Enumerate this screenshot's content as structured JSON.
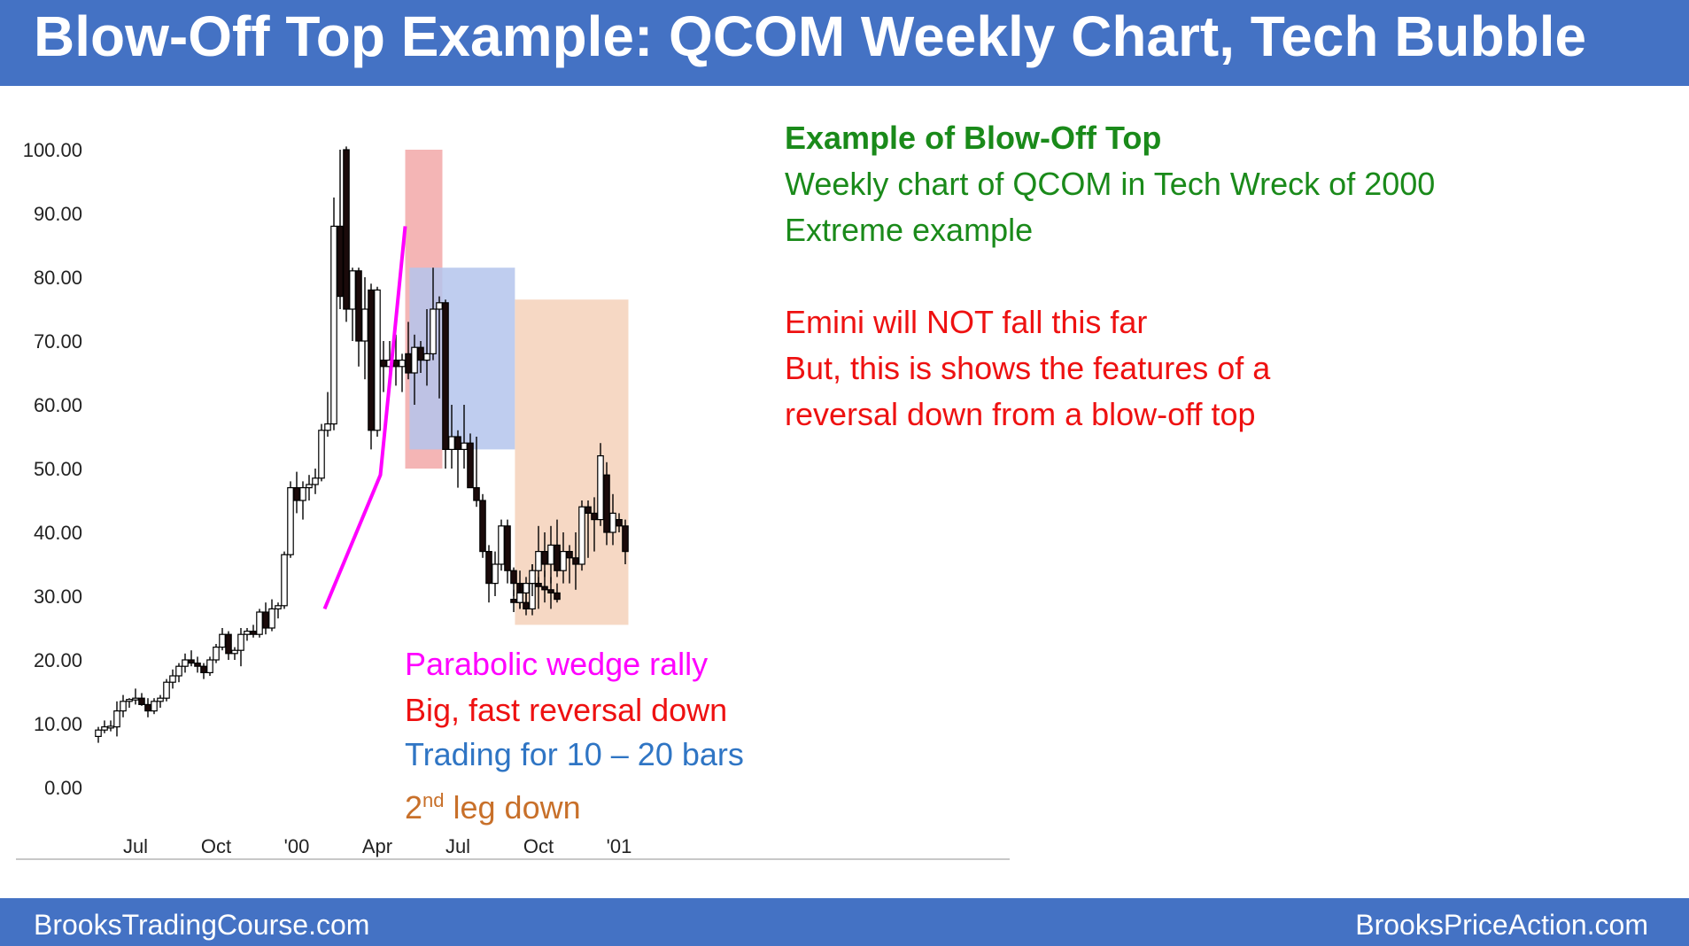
{
  "header": {
    "title": "Blow-Off Top Example: QCOM Weekly Chart, Tech Bubble"
  },
  "footer": {
    "left": "BrooksTradingCourse.com",
    "right": "BrooksPriceAction.com"
  },
  "annotations": {
    "top_heading": "Example of Blow-Off Top",
    "top_line1": "Weekly chart of QCOM in Tech Wreck of 2000",
    "top_line2": "Extreme example",
    "red_line1": "Emini will NOT fall this far",
    "red_line2": "But, this is shows the features of a",
    "red_line3": "reversal down from a blow-off top",
    "bottom_line1": "Parabolic wedge rally",
    "bottom_line2": "Big, fast reversal down",
    "bottom_line3": "Trading for 10 – 20 bars",
    "bottom_line4_pre": "2",
    "bottom_line4_sup": "nd",
    "bottom_line4_post": " leg down"
  },
  "colors": {
    "green": "#1a8a1a",
    "red": "#ee1111",
    "magenta": "#ff00ff",
    "blue": "#2f75c4",
    "orange": "#c8702a",
    "blowoff_box": "#f4b5b5",
    "range_box": "#b4c4ec",
    "leg_box": "#f6d8c4",
    "brand": "#4472c4"
  },
  "chart_data": {
    "type": "candlestick",
    "yticks": [
      "100.00",
      "90.00",
      "80.00",
      "70.00",
      "60.00",
      "50.00",
      "40.00",
      "30.00",
      "20.00",
      "10.00",
      "0.00"
    ],
    "ylim": [
      0,
      100
    ],
    "xticks": [
      {
        "label": "Jul",
        "week": 6
      },
      {
        "label": "Oct",
        "week": 19
      },
      {
        "label": "'00",
        "week": 32
      },
      {
        "label": "Apr",
        "week": 45
      },
      {
        "label": "Jul",
        "week": 58
      },
      {
        "label": "Oct",
        "week": 71
      },
      {
        "label": "'01",
        "week": 84
      }
    ],
    "candles": [
      {
        "o": 8,
        "h": 9.5,
        "l": 7,
        "c": 9
      },
      {
        "o": 9,
        "h": 10.5,
        "l": 8.5,
        "c": 9.5
      },
      {
        "o": 9.5,
        "h": 10.5,
        "l": 8.8,
        "c": 9.6
      },
      {
        "o": 9.5,
        "h": 13.5,
        "l": 8,
        "c": 12
      },
      {
        "o": 12,
        "h": 14.5,
        "l": 11,
        "c": 13.5
      },
      {
        "o": 13.5,
        "h": 14,
        "l": 12.5,
        "c": 13.8
      },
      {
        "o": 13.8,
        "h": 15.5,
        "l": 13,
        "c": 14
      },
      {
        "o": 14,
        "h": 14.8,
        "l": 12.8,
        "c": 13
      },
      {
        "o": 13,
        "h": 14,
        "l": 11,
        "c": 12
      },
      {
        "o": 12,
        "h": 14,
        "l": 11.5,
        "c": 13.5
      },
      {
        "o": 13.5,
        "h": 14.5,
        "l": 12.5,
        "c": 14
      },
      {
        "o": 14,
        "h": 17,
        "l": 13.5,
        "c": 16.5
      },
      {
        "o": 16.5,
        "h": 18.5,
        "l": 15.5,
        "c": 17.5
      },
      {
        "o": 17.5,
        "h": 19.5,
        "l": 16.5,
        "c": 19
      },
      {
        "o": 19,
        "h": 21,
        "l": 18,
        "c": 20
      },
      {
        "o": 20,
        "h": 21.5,
        "l": 19,
        "c": 19.5
      },
      {
        "o": 19.5,
        "h": 20.5,
        "l": 18,
        "c": 19
      },
      {
        "o": 19,
        "h": 19.5,
        "l": 17,
        "c": 18
      },
      {
        "o": 18,
        "h": 20.5,
        "l": 17.5,
        "c": 20
      },
      {
        "o": 20,
        "h": 22.5,
        "l": 19.5,
        "c": 22
      },
      {
        "o": 22,
        "h": 25,
        "l": 21.5,
        "c": 24
      },
      {
        "o": 24,
        "h": 24.5,
        "l": 20,
        "c": 21
      },
      {
        "o": 21,
        "h": 22,
        "l": 20,
        "c": 21.5
      },
      {
        "o": 21.5,
        "h": 25,
        "l": 19,
        "c": 24
      },
      {
        "o": 24,
        "h": 25,
        "l": 23,
        "c": 24.5
      },
      {
        "o": 24.5,
        "h": 25.5,
        "l": 23.5,
        "c": 24
      },
      {
        "o": 24,
        "h": 28,
        "l": 23.5,
        "c": 27.5
      },
      {
        "o": 27.5,
        "h": 29,
        "l": 24,
        "c": 25
      },
      {
        "o": 25,
        "h": 29.5,
        "l": 24.5,
        "c": 28
      },
      {
        "o": 28,
        "h": 29,
        "l": 26.5,
        "c": 28.5
      },
      {
        "o": 28.5,
        "h": 37,
        "l": 28,
        "c": 36.5
      },
      {
        "o": 36.5,
        "h": 48,
        "l": 36,
        "c": 47
      },
      {
        "o": 47,
        "h": 49.5,
        "l": 43,
        "c": 45
      },
      {
        "o": 45,
        "h": 48,
        "l": 42,
        "c": 47
      },
      {
        "o": 47,
        "h": 49,
        "l": 45,
        "c": 47.5
      },
      {
        "o": 47.5,
        "h": 50,
        "l": 46,
        "c": 48.5
      },
      {
        "o": 48.5,
        "h": 57,
        "l": 48,
        "c": 56
      },
      {
        "o": 56,
        "h": 62,
        "l": 55,
        "c": 57
      },
      {
        "o": 57,
        "h": 92.5,
        "l": 56,
        "c": 88
      },
      {
        "o": 88,
        "h": 100,
        "l": 75,
        "c": 77
      },
      {
        "o": 100,
        "h": 100.5,
        "l": 73,
        "c": 75
      },
      {
        "o": 75,
        "h": 81.5,
        "l": 70,
        "c": 81
      },
      {
        "o": 81,
        "h": 81.5,
        "l": 66,
        "c": 70
      },
      {
        "o": 70,
        "h": 80,
        "l": 64,
        "c": 75
      },
      {
        "o": 78,
        "h": 79,
        "l": 53,
        "c": 56
      },
      {
        "o": 56,
        "h": 78.5,
        "l": 55,
        "c": 78
      },
      {
        "o": 67,
        "h": 70,
        "l": 62,
        "c": 66
      },
      {
        "o": 66,
        "h": 70,
        "l": 63,
        "c": 67
      },
      {
        "o": 67,
        "h": 71,
        "l": 63,
        "c": 66
      },
      {
        "o": 66,
        "h": 68,
        "l": 62,
        "c": 67
      },
      {
        "o": 68,
        "h": 73,
        "l": 64,
        "c": 65
      },
      {
        "o": 65,
        "h": 71,
        "l": 60,
        "c": 69
      },
      {
        "o": 69,
        "h": 70,
        "l": 65,
        "c": 67
      },
      {
        "o": 67,
        "h": 75,
        "l": 63,
        "c": 68
      },
      {
        "o": 68,
        "h": 81.5,
        "l": 67,
        "c": 75
      },
      {
        "o": 75,
        "h": 77,
        "l": 61,
        "c": 76
      },
      {
        "o": 76,
        "h": 76.5,
        "l": 50,
        "c": 53
      },
      {
        "o": 53,
        "h": 60,
        "l": 50,
        "c": 55
      },
      {
        "o": 55,
        "h": 56,
        "l": 47,
        "c": 53
      },
      {
        "o": 53,
        "h": 60,
        "l": 50,
        "c": 54
      },
      {
        "o": 54,
        "h": 55.5,
        "l": 47,
        "c": 47
      },
      {
        "o": 47,
        "h": 55,
        "l": 44,
        "c": 45
      },
      {
        "o": 45,
        "h": 46,
        "l": 36,
        "c": 37
      },
      {
        "o": 37,
        "h": 38,
        "l": 29,
        "c": 32
      },
      {
        "o": 32,
        "h": 37,
        "l": 30,
        "c": 35
      },
      {
        "o": 35,
        "h": 42,
        "l": 34,
        "c": 41
      },
      {
        "o": 41,
        "h": 42,
        "l": 32,
        "c": 34
      },
      {
        "o": 34,
        "h": 34.5,
        "l": 30,
        "c": 32
      },
      {
        "o": 32,
        "h": 34,
        "l": 28,
        "c": 29
      },
      {
        "o": 29,
        "h": 31,
        "l": 27,
        "c": 28
      },
      {
        "o": 28,
        "h": 35,
        "l": 27,
        "c": 32
      },
      {
        "o": 32,
        "h": 33,
        "l": 28,
        "c": 31.5
      },
      {
        "o": 31.5,
        "h": 34,
        "l": 29,
        "c": 31
      },
      {
        "o": 31,
        "h": 33,
        "l": 28,
        "c": 30.5
      },
      {
        "o": 30.5,
        "h": 32,
        "l": 29,
        "c": 29.5
      }
    ],
    "candles_late": [
      {
        "w": 67,
        "o": 29.5,
        "h": 31,
        "l": 27.5,
        "c": 29
      },
      {
        "w": 68,
        "o": 29,
        "h": 32,
        "l": 28,
        "c": 30.5
      },
      {
        "w": 69,
        "o": 30.5,
        "h": 33,
        "l": 29,
        "c": 32
      },
      {
        "w": 70,
        "o": 32,
        "h": 35,
        "l": 30,
        "c": 34
      },
      {
        "w": 71,
        "o": 34,
        "h": 41,
        "l": 32,
        "c": 37
      },
      {
        "w": 72,
        "o": 37,
        "h": 40,
        "l": 33,
        "c": 35
      },
      {
        "w": 73,
        "o": 35,
        "h": 41,
        "l": 32,
        "c": 38
      },
      {
        "w": 74,
        "o": 38,
        "h": 42,
        "l": 33,
        "c": 34
      },
      {
        "w": 75,
        "o": 34,
        "h": 40,
        "l": 32,
        "c": 37
      },
      {
        "w": 76,
        "o": 37,
        "h": 38,
        "l": 32,
        "c": 36
      },
      {
        "w": 77,
        "o": 36,
        "h": 40,
        "l": 31,
        "c": 35
      },
      {
        "w": 78,
        "o": 35,
        "h": 45,
        "l": 34,
        "c": 44
      },
      {
        "w": 79,
        "o": 44,
        "h": 45,
        "l": 36,
        "c": 43
      },
      {
        "w": 80,
        "o": 43,
        "h": 45.5,
        "l": 37,
        "c": 42
      },
      {
        "w": 81,
        "o": 42,
        "h": 54,
        "l": 41,
        "c": 52
      },
      {
        "w": 82,
        "o": 49,
        "h": 51,
        "l": 38,
        "c": 40
      },
      {
        "w": 83,
        "o": 40,
        "h": 46,
        "l": 38,
        "c": 43
      },
      {
        "w": 84,
        "o": 42,
        "h": 43,
        "l": 40,
        "c": 41
      },
      {
        "w": 85,
        "o": 41,
        "h": 42,
        "l": 35,
        "c": 37
      }
    ]
  }
}
